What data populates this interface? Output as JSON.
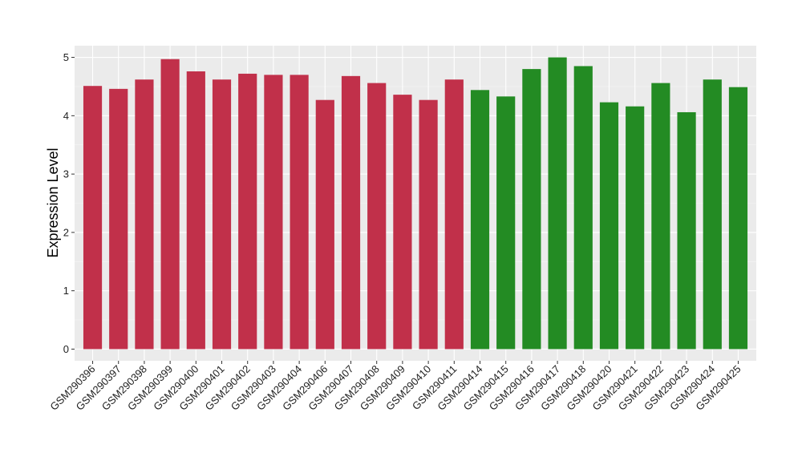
{
  "chart_data": {
    "type": "bar",
    "title": "",
    "xlabel": "",
    "ylabel": "Expression Level",
    "ylim": [
      -0.2,
      5.2
    ],
    "yticks": [
      0,
      1,
      2,
      3,
      4,
      5
    ],
    "grid": true,
    "legend": "none",
    "colors": {
      "panel_background": "#ebebeb",
      "grid_major": "#ffffff",
      "grid_minor": "#f5f5f5",
      "red": "#c1304a",
      "green": "#238b23"
    },
    "categories": [
      "GSM290396",
      "GSM290397",
      "GSM290398",
      "GSM290399",
      "GSM290400",
      "GSM290401",
      "GSM290402",
      "GSM290403",
      "GSM290404",
      "GSM290406",
      "GSM290407",
      "GSM290408",
      "GSM290409",
      "GSM290410",
      "GSM290411",
      "GSM290414",
      "GSM290415",
      "GSM290416",
      "GSM290417",
      "GSM290418",
      "GSM290420",
      "GSM290421",
      "GSM290422",
      "GSM290423",
      "GSM290424",
      "GSM290425"
    ],
    "values": [
      4.51,
      4.46,
      4.62,
      4.97,
      4.76,
      4.62,
      4.72,
      4.7,
      4.7,
      4.27,
      4.68,
      4.56,
      4.36,
      4.27,
      4.62,
      4.44,
      4.33,
      4.8,
      5.0,
      4.85,
      4.23,
      4.16,
      4.56,
      4.06,
      4.62,
      4.49
    ],
    "bar_colors": [
      "red",
      "red",
      "red",
      "red",
      "red",
      "red",
      "red",
      "red",
      "red",
      "red",
      "red",
      "red",
      "red",
      "red",
      "red",
      "green",
      "green",
      "green",
      "green",
      "green",
      "green",
      "green",
      "green",
      "green",
      "green",
      "green"
    ]
  }
}
